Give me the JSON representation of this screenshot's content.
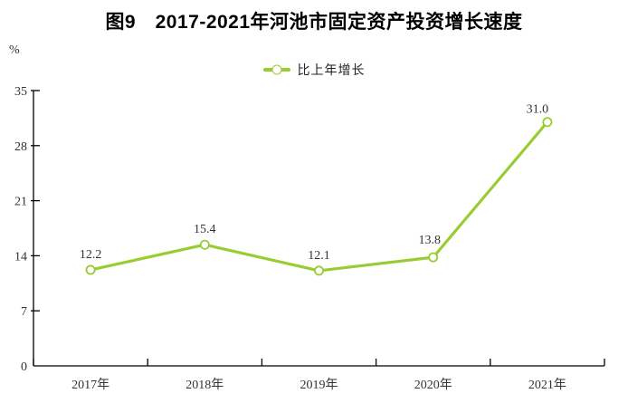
{
  "page": {
    "title": "图9　2017-2021年河池市固定资产投资增长速度"
  },
  "legend": {
    "label": "比上年增长"
  },
  "colors": {
    "line": "#99CC33",
    "marker_fill": "#FFFFFF",
    "axis": "#000000",
    "text": "#333333",
    "background": "#FFFFFF"
  },
  "chart_data": {
    "type": "line",
    "title": "图9　2017-2021年河池市固定资产投资增长速度",
    "categories": [
      "2017年",
      "2018年",
      "2019年",
      "2020年",
      "2021年"
    ],
    "series": [
      {
        "name": "比上年增长",
        "values": [
          12.2,
          15.4,
          12.1,
          13.8,
          31.0
        ]
      }
    ],
    "data_labels": [
      "12.2",
      "15.4",
      "12.1",
      "13.8",
      "31.0"
    ],
    "xlabel": "",
    "ylabel": "%",
    "ylim": [
      0,
      35
    ],
    "yticks": [
      0,
      7,
      14,
      21,
      28,
      35
    ],
    "grid": false,
    "legend_position": "top-center",
    "marker": "open-circle"
  }
}
